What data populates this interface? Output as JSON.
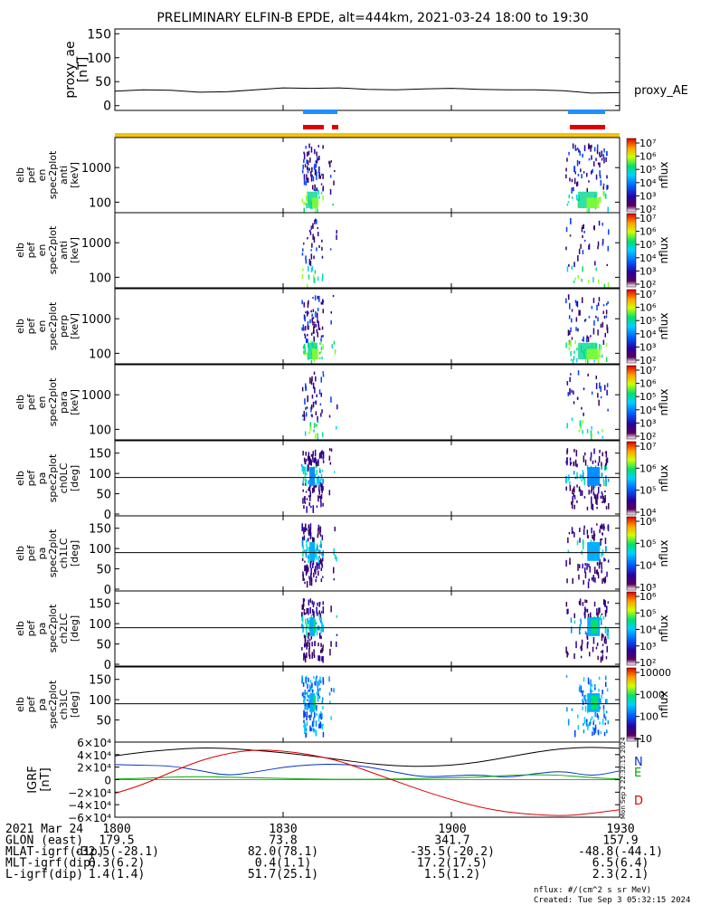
{
  "title": "PRELIMINARY ELFIN-B EPDE, alt=444km, 2021-03-24 18:00 to 19:30",
  "x_ticks": [
    "1800",
    "1830",
    "1900",
    "1930"
  ],
  "colors": {
    "sci_zone_bar": "#f5c400",
    "blue_bar": "#1e90ff",
    "red_bar": "#e00000",
    "igrf_t": "#000000",
    "igrf_n": "#0033cc",
    "igrf_e": "#00aa00",
    "igrf_d": "#dd0000"
  },
  "chart_data": [
    {
      "type": "line",
      "panel": "proxy_ae",
      "ylabel": "proxy_ae\n[nT]",
      "yticks": [
        "0",
        "50",
        "100",
        "150"
      ],
      "ylim": [
        -10,
        160
      ],
      "legend": "proxy_AE",
      "x_minutes": [
        0,
        5,
        10,
        15,
        20,
        25,
        30,
        35,
        40,
        45,
        50,
        55,
        60,
        65,
        70,
        75,
        80,
        85,
        90
      ],
      "values": [
        30,
        33,
        32,
        28,
        29,
        33,
        37,
        36,
        37,
        34,
        33,
        35,
        36,
        34,
        33,
        33,
        31,
        26,
        27
      ]
    },
    {
      "type": "heatmap",
      "panel": "elb pef en spec2plot anti [keV]",
      "ylabel_lines": [
        "elb",
        "pef",
        "en",
        "spec2plot",
        "anti",
        "[keV]"
      ],
      "yticks": [
        "100",
        "1000"
      ],
      "cbar_ticks": [
        "10⁷",
        "10⁶",
        "10⁵",
        "10⁴",
        "10³",
        "10²"
      ],
      "cbar_label": "nflux",
      "scale": "log"
    },
    {
      "type": "heatmap",
      "panel": "elb pef en spec2plot anti [keV]",
      "ylabel_lines": [
        "elb",
        "pef",
        "en",
        "spec2plot",
        "anti",
        "[keV]"
      ],
      "yticks": [
        "100",
        "1000"
      ],
      "cbar_ticks": [
        "10⁷",
        "10⁶",
        "10⁵",
        "10⁴",
        "10³",
        "10²"
      ],
      "cbar_label": "nflux",
      "scale": "log"
    },
    {
      "type": "heatmap",
      "panel": "elb pef en spec2plot perp [keV]",
      "ylabel_lines": [
        "elb",
        "pef",
        "en",
        "spec2plot",
        "perp",
        "[keV]"
      ],
      "yticks": [
        "100",
        "1000"
      ],
      "cbar_ticks": [
        "10⁷",
        "10⁶",
        "10⁵",
        "10⁴",
        "10³",
        "10²"
      ],
      "cbar_label": "nflux",
      "scale": "log"
    },
    {
      "type": "heatmap",
      "panel": "elb pef en spec2plot para [keV]",
      "ylabel_lines": [
        "elb",
        "pef",
        "en",
        "spec2plot",
        "para",
        "[keV]"
      ],
      "yticks": [
        "100",
        "1000"
      ],
      "cbar_ticks": [
        "10⁷",
        "10⁶",
        "10⁵",
        "10⁴",
        "10³",
        "10²"
      ],
      "cbar_label": "nflux",
      "scale": "log"
    },
    {
      "type": "heatmap",
      "panel": "elb pef pa spec2plot ch0LC [deg]",
      "ylabel_lines": [
        "elb",
        "pef",
        "pa",
        "spec2plot",
        "ch0LC",
        "[deg]"
      ],
      "yticks": [
        "0",
        "50",
        "100",
        "150"
      ],
      "cbar_ticks": [
        "10⁷",
        "10⁶",
        "10⁵",
        "10⁴"
      ],
      "cbar_label": "nflux",
      "scale": "log"
    },
    {
      "type": "heatmap",
      "panel": "elb pef pa spec2plot ch1LC [deg]",
      "ylabel_lines": [
        "elb",
        "pef",
        "pa",
        "spec2plot",
        "ch1LC",
        "[deg]"
      ],
      "yticks": [
        "0",
        "50",
        "100",
        "150"
      ],
      "cbar_ticks": [
        "10⁶",
        "10⁵",
        "10⁴",
        "10³"
      ],
      "cbar_label": "nflux",
      "scale": "log"
    },
    {
      "type": "heatmap",
      "panel": "elb pef pa spec2plot ch2LC [deg]",
      "ylabel_lines": [
        "elb",
        "pef",
        "pa",
        "spec2plot",
        "ch2LC",
        "[deg]"
      ],
      "yticks": [
        "0",
        "50",
        "100",
        "150"
      ],
      "cbar_ticks": [
        "10⁶",
        "10⁵",
        "10⁴",
        "10³",
        "10²"
      ],
      "cbar_label": "nflux",
      "scale": "log"
    },
    {
      "type": "heatmap",
      "panel": "elb pef pa spec2plot ch3LC [deg]",
      "ylabel_lines": [
        "elb",
        "pef",
        "pa",
        "spec2plot",
        "ch3LC",
        "[deg]"
      ],
      "yticks": [
        "50",
        "100",
        "150"
      ],
      "cbar_ticks": [
        "10000",
        "1000",
        "100",
        "10"
      ],
      "cbar_label": "nflux",
      "scale": "log"
    },
    {
      "type": "line",
      "panel": "IGRF [nT]",
      "ylabel": "IGRF\n[nT]",
      "yticks": [
        "6×10⁴",
        "4×10⁴",
        "2×10⁴",
        "0",
        "−2×10⁴",
        "−4×10⁴",
        "−6×10⁴"
      ],
      "ylim": [
        -60000,
        60000
      ],
      "x_minutes": [
        0,
        5,
        10,
        15,
        20,
        25,
        30,
        35,
        40,
        45,
        50,
        55,
        60,
        65,
        70,
        75,
        80,
        85,
        90
      ],
      "series": [
        {
          "name": "T",
          "values": [
            38000,
            44000,
            48000,
            51000,
            50000,
            47000,
            43000,
            38000,
            32000,
            26000,
            22000,
            21000,
            23000,
            28000,
            36000,
            44000,
            50000,
            52000,
            50000
          ]
        },
        {
          "name": "N",
          "values": [
            24000,
            23000,
            22000,
            15000,
            6000,
            12000,
            20000,
            24000,
            25000,
            21000,
            12000,
            4000,
            6000,
            8000,
            3000,
            10000,
            14000,
            5000,
            14000
          ]
        },
        {
          "name": "E",
          "values": [
            1000,
            2000,
            4000,
            5000,
            4000,
            3000,
            2000,
            1000,
            500,
            500,
            1000,
            2000,
            3000,
            4000,
            7000,
            8000,
            7000,
            3000,
            1000
          ]
        },
        {
          "name": "D",
          "values": [
            -22000,
            -8000,
            12000,
            30000,
            42000,
            48000,
            46000,
            40000,
            30000,
            14000,
            -2000,
            -18000,
            -32000,
            -44000,
            -52000,
            -56000,
            -58000,
            -54000,
            -48000
          ]
        }
      ]
    }
  ],
  "footer": {
    "rows": [
      {
        "label": "2021 Mar 24",
        "vals": [
          "1800",
          "1830",
          "1900",
          "1930"
        ]
      },
      {
        "label": "GLON (east)",
        "vals": [
          "179.5",
          "73.8",
          "341.7",
          "157.9"
        ]
      },
      {
        "label": "MLAT-igrf(dip)",
        "vals": [
          "-32.5(-28.1)",
          "82.0(78.1)",
          "-35.5(-20.2)",
          "-48.8(-44.1)"
        ]
      },
      {
        "label": "MLT-igrf(dip)",
        "vals": [
          "6.3(6.2)",
          "0.4(1.1)",
          "17.2(17.5)",
          "6.5(6.4)"
        ]
      },
      {
        "label": "L-igrf(dip)",
        "vals": [
          "1.4(1.4)",
          "51.7(25.1)",
          "1.5(1.2)",
          "2.3(2.1)"
        ]
      }
    ],
    "nflux_note": "nflux: #/(cm^2 s sr MeV)",
    "created": "Created: Tue Sep  3 05:32:15 2024",
    "side_stamp": "Mon Sep  2 22:32:15 2024"
  }
}
